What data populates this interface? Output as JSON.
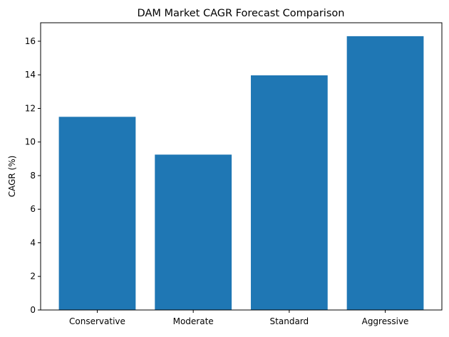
{
  "chart_data": {
    "type": "bar",
    "title": "DAM Market CAGR Forecast Comparison",
    "xlabel": "",
    "ylabel": "CAGR (%)",
    "categories": [
      "Conservative",
      "Moderate",
      "Standard",
      "Aggressive"
    ],
    "values": [
      11.5,
      9.25,
      13.97,
      16.3
    ],
    "ylim": [
      0,
      17.1
    ],
    "yticks": [
      0,
      2,
      4,
      6,
      8,
      10,
      12,
      14,
      16
    ],
    "grid": false,
    "bar_color": "#1f77b4"
  }
}
